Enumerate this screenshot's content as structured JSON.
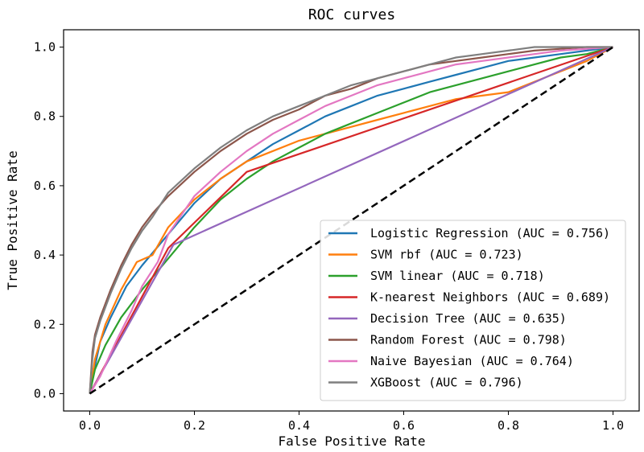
{
  "chart_data": {
    "type": "line",
    "title": "ROC curves",
    "xlabel": "False Positive Rate",
    "ylabel": "True Positive Rate",
    "xlim": [
      -0.05,
      1.05
    ],
    "ylim": [
      -0.05,
      1.05
    ],
    "xticks": [
      "0.0",
      "0.2",
      "0.4",
      "0.6",
      "0.8",
      "1.0"
    ],
    "yticks": [
      "0.0",
      "0.2",
      "0.4",
      "0.6",
      "0.8",
      "1.0"
    ],
    "grid": false,
    "legend_position": "lower-right",
    "diagonal": {
      "x": [
        0,
        1
      ],
      "y": [
        0,
        1
      ],
      "color": "#000000",
      "style": "dashed"
    },
    "series": [
      {
        "name": "Logistic Regression (AUC = 0.756)",
        "color": "#1f77b4",
        "x": [
          0,
          0.01,
          0.02,
          0.04,
          0.07,
          0.1,
          0.15,
          0.2,
          0.25,
          0.3,
          0.35,
          0.4,
          0.45,
          0.5,
          0.55,
          0.6,
          0.65,
          0.7,
          0.75,
          0.8,
          0.85,
          0.9,
          0.95,
          1.0
        ],
        "y": [
          0,
          0.08,
          0.15,
          0.22,
          0.31,
          0.37,
          0.46,
          0.55,
          0.62,
          0.67,
          0.72,
          0.76,
          0.8,
          0.83,
          0.86,
          0.88,
          0.9,
          0.92,
          0.94,
          0.96,
          0.97,
          0.98,
          0.99,
          1.0
        ]
      },
      {
        "name": "SVM rbf (AUC = 0.723)",
        "color": "#ff7f0e",
        "x": [
          0,
          0.01,
          0.03,
          0.06,
          0.09,
          0.12,
          0.15,
          0.2,
          0.25,
          0.3,
          0.35,
          0.4,
          0.45,
          0.5,
          0.55,
          0.6,
          0.65,
          0.7,
          0.75,
          0.8,
          0.85,
          0.9,
          0.95,
          1.0
        ],
        "y": [
          0,
          0.1,
          0.2,
          0.3,
          0.38,
          0.4,
          0.48,
          0.56,
          0.62,
          0.67,
          0.7,
          0.73,
          0.75,
          0.77,
          0.79,
          0.81,
          0.83,
          0.85,
          0.86,
          0.87,
          0.9,
          0.93,
          0.96,
          1.0
        ]
      },
      {
        "name": "SVM linear (AUC = 0.718)",
        "color": "#2ca02c",
        "x": [
          0,
          0.01,
          0.03,
          0.06,
          0.1,
          0.15,
          0.2,
          0.25,
          0.3,
          0.35,
          0.4,
          0.45,
          0.5,
          0.55,
          0.6,
          0.65,
          0.7,
          0.75,
          0.8,
          0.85,
          0.9,
          0.95,
          1.0
        ],
        "y": [
          0,
          0.07,
          0.14,
          0.22,
          0.3,
          0.39,
          0.48,
          0.56,
          0.62,
          0.67,
          0.71,
          0.75,
          0.78,
          0.81,
          0.84,
          0.87,
          0.89,
          0.91,
          0.93,
          0.95,
          0.97,
          0.98,
          1.0
        ]
      },
      {
        "name": "K-nearest Neighbors (AUC = 0.689)",
        "color": "#d62728",
        "x": [
          0,
          0.15,
          0.3,
          1.0
        ],
        "y": [
          0,
          0.42,
          0.64,
          1.0
        ]
      },
      {
        "name": "Decision Tree (AUC = 0.635)",
        "color": "#9467bd",
        "x": [
          0,
          0.16,
          1.0
        ],
        "y": [
          0,
          0.43,
          1.0
        ]
      },
      {
        "name": "Random Forest (AUC = 0.798)",
        "color": "#8c564b",
        "x": [
          0,
          0.005,
          0.01,
          0.02,
          0.04,
          0.06,
          0.08,
          0.1,
          0.12,
          0.15,
          0.2,
          0.25,
          0.3,
          0.35,
          0.4,
          0.45,
          0.5,
          0.55,
          0.6,
          0.65,
          0.7,
          0.75,
          0.8,
          0.85,
          0.9,
          0.95,
          1.0
        ],
        "y": [
          0,
          0.12,
          0.17,
          0.22,
          0.3,
          0.37,
          0.43,
          0.48,
          0.52,
          0.57,
          0.64,
          0.7,
          0.75,
          0.79,
          0.82,
          0.86,
          0.88,
          0.91,
          0.93,
          0.95,
          0.96,
          0.97,
          0.98,
          0.99,
          0.995,
          1.0,
          1.0
        ]
      },
      {
        "name": "Naive Bayesian (AUC = 0.764)",
        "color": "#e377c2",
        "x": [
          0,
          0.02,
          0.05,
          0.08,
          0.1,
          0.13,
          0.15,
          0.2,
          0.25,
          0.3,
          0.35,
          0.4,
          0.45,
          0.5,
          0.55,
          0.6,
          0.65,
          0.7,
          0.75,
          0.8,
          0.85,
          0.9,
          0.95,
          1.0
        ],
        "y": [
          0,
          0.05,
          0.15,
          0.24,
          0.31,
          0.38,
          0.46,
          0.57,
          0.64,
          0.7,
          0.75,
          0.79,
          0.83,
          0.86,
          0.89,
          0.91,
          0.93,
          0.95,
          0.96,
          0.97,
          0.98,
          0.99,
          0.995,
          1.0
        ]
      },
      {
        "name": "XGBoost (AUC = 0.796)",
        "color": "#7f7f7f",
        "x": [
          0,
          0.005,
          0.01,
          0.02,
          0.04,
          0.06,
          0.08,
          0.1,
          0.12,
          0.15,
          0.2,
          0.25,
          0.3,
          0.35,
          0.4,
          0.45,
          0.5,
          0.55,
          0.6,
          0.65,
          0.7,
          0.75,
          0.8,
          0.85,
          0.9,
          0.95,
          1.0
        ],
        "y": [
          0,
          0.1,
          0.16,
          0.21,
          0.29,
          0.36,
          0.42,
          0.47,
          0.51,
          0.58,
          0.65,
          0.71,
          0.76,
          0.8,
          0.83,
          0.86,
          0.89,
          0.91,
          0.93,
          0.95,
          0.97,
          0.98,
          0.99,
          1.0,
          1.0,
          1.0,
          1.0
        ]
      }
    ]
  }
}
